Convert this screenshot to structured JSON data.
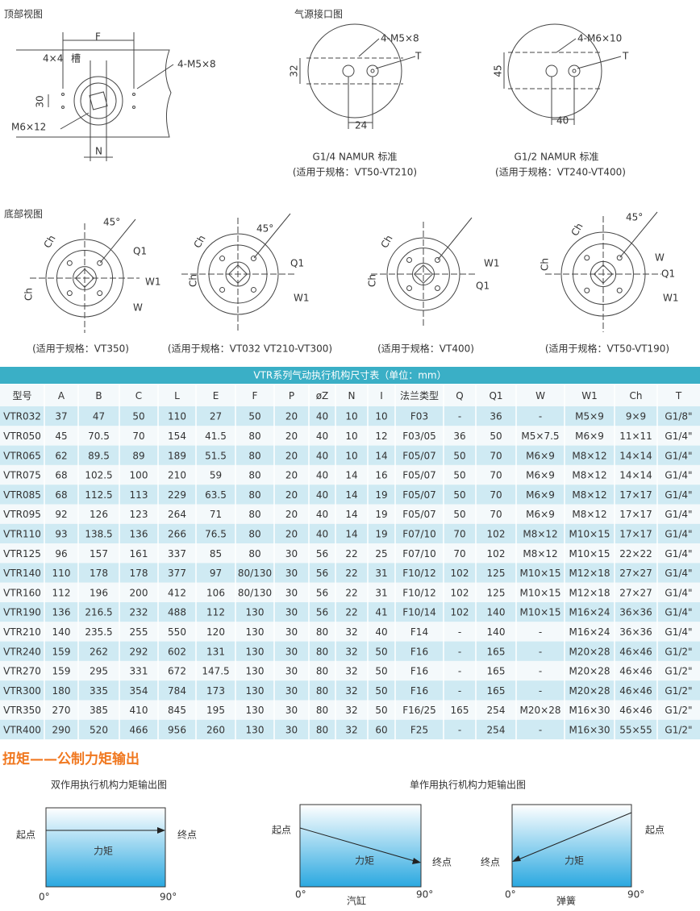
{
  "top_view": {
    "title": "顶部视图",
    "labels": [
      "F",
      "4×4",
      "槽",
      "4-M5×8",
      "30",
      "M6×12",
      "N"
    ]
  },
  "air_ports": {
    "title": "气源接口图",
    "labels": [
      "4-M5×8",
      "T",
      "32",
      "24",
      "4-M6×10",
      "T",
      "45",
      "40"
    ],
    "captions": [
      "G1/4 NAMUR 标准",
      "(适用于规格：VT50-VT210)",
      "G1/2 NAMUR  标准",
      "(适用于规格：VT240-VT400)"
    ]
  },
  "bottom_view": {
    "title": "底部视图",
    "labels": [
      "45°",
      "Ch",
      "Q1",
      "W1",
      "W",
      "Ch",
      "45°",
      "Ch",
      "Q1",
      "W1",
      "Ch",
      "Ch",
      "W1",
      "Q1",
      "Ch",
      "45°",
      "Ch",
      "W",
      "Q1",
      "W1",
      "Ch"
    ],
    "captions": [
      "(适用于规格：VT350)",
      "(适用于规格：VT032 VT210-VT300)",
      "(适用于规格：VT400)",
      "(适用于规格：VT50-VT190)"
    ]
  },
  "table": {
    "title": "VTR系列气动执行机构尺寸表（单位：mm）",
    "header": [
      "型号",
      "A",
      "B",
      "C",
      "L",
      "E",
      "F",
      "P",
      "øZ",
      "N",
      "I",
      "法兰类型",
      "Q",
      "Q1",
      "W",
      "W1",
      "Ch",
      "T"
    ],
    "rows": [
      [
        "VTR032",
        "37",
        "47",
        "50",
        "110",
        "27",
        "50",
        "20",
        "40",
        "10",
        "10",
        "F03",
        "-",
        "36",
        "-",
        "M5×9",
        "9×9",
        "G1/8\""
      ],
      [
        "VTR050",
        "45",
        "70.5",
        "70",
        "154",
        "41.5",
        "80",
        "20",
        "40",
        "10",
        "12",
        "F03/05",
        "36",
        "50",
        "M5×7.5",
        "M6×9",
        "11×11",
        "G1/4\""
      ],
      [
        "VTR065",
        "62",
        "89.5",
        "89",
        "189",
        "51.5",
        "80",
        "20",
        "40",
        "10",
        "14",
        "F05/07",
        "50",
        "70",
        "M6×9",
        "M8×12",
        "14×14",
        "G1/4\""
      ],
      [
        "VTR075",
        "68",
        "102.5",
        "100",
        "210",
        "59",
        "80",
        "20",
        "40",
        "14",
        "16",
        "F05/07",
        "50",
        "70",
        "M6×9",
        "M8×12",
        "14×14",
        "G1/4\""
      ],
      [
        "VTR085",
        "68",
        "112.5",
        "113",
        "229",
        "63.5",
        "80",
        "20",
        "40",
        "14",
        "19",
        "F05/07",
        "50",
        "70",
        "M6×9",
        "M8×12",
        "17×17",
        "G1/4\""
      ],
      [
        "VTR095",
        "92",
        "126",
        "123",
        "264",
        "71",
        "80",
        "20",
        "40",
        "14",
        "19",
        "F05/07",
        "50",
        "70",
        "M6×9",
        "M8×12",
        "17×17",
        "G1/4\""
      ],
      [
        "VTR110",
        "93",
        "138.5",
        "136",
        "266",
        "76.5",
        "80",
        "20",
        "40",
        "14",
        "19",
        "F07/10",
        "70",
        "102",
        "M8×12",
        "M10×15",
        "17×17",
        "G1/4\""
      ],
      [
        "VTR125",
        "96",
        "157",
        "161",
        "337",
        "85",
        "80",
        "30",
        "56",
        "22",
        "25",
        "F07/10",
        "70",
        "102",
        "M8×12",
        "M10×15",
        "22×22",
        "G1/4\""
      ],
      [
        "VTR140",
        "110",
        "178",
        "178",
        "377",
        "97",
        "80/130",
        "30",
        "56",
        "22",
        "31",
        "F10/12",
        "102",
        "125",
        "M10×15",
        "M12×18",
        "27×27",
        "G1/4\""
      ],
      [
        "VTR160",
        "112",
        "196",
        "200",
        "412",
        "106",
        "80/130",
        "30",
        "56",
        "22",
        "31",
        "F10/12",
        "102",
        "125",
        "M10×15",
        "M12×18",
        "27×27",
        "G1/4\""
      ],
      [
        "VTR190",
        "136",
        "216.5",
        "232",
        "488",
        "112",
        "130",
        "30",
        "56",
        "22",
        "41",
        "F10/14",
        "102",
        "140",
        "M10×15",
        "M16×24",
        "36×36",
        "G1/4\""
      ],
      [
        "VTR210",
        "140",
        "235.5",
        "255",
        "550",
        "120",
        "130",
        "30",
        "80",
        "32",
        "40",
        "F14",
        "-",
        "140",
        "-",
        "M16×24",
        "36×36",
        "G1/4\""
      ],
      [
        "VTR240",
        "159",
        "262",
        "292",
        "602",
        "131",
        "130",
        "30",
        "80",
        "32",
        "50",
        "F16",
        "-",
        "165",
        "-",
        "M20×28",
        "46×46",
        "G1/2\""
      ],
      [
        "VTR270",
        "159",
        "295",
        "331",
        "672",
        "147.5",
        "130",
        "30",
        "80",
        "32",
        "50",
        "F16",
        "-",
        "165",
        "-",
        "M20×28",
        "46×46",
        "G1/2\""
      ],
      [
        "VTR300",
        "180",
        "335",
        "354",
        "784",
        "173",
        "130",
        "30",
        "80",
        "32",
        "50",
        "F16",
        "-",
        "165",
        "-",
        "M20×28",
        "46×46",
        "G1/2\""
      ],
      [
        "VTR350",
        "270",
        "385",
        "410",
        "845",
        "195",
        "130",
        "30",
        "80",
        "32",
        "50",
        "F16/25",
        "165",
        "254",
        "M20×28",
        "M16×30",
        "46×46",
        "G1/2\""
      ],
      [
        "VTR400",
        "290",
        "520",
        "466",
        "956",
        "260",
        "130",
        "30",
        "80",
        "32",
        "60",
        "F25",
        "-",
        "254",
        "-",
        "M16×30",
        "55×55",
        "G1/2\""
      ]
    ]
  },
  "torque": {
    "title": "扭矩——公制力矩输出",
    "double": {
      "title": "双作用执行机构力矩输出图",
      "start": "起点",
      "end": "终点",
      "torque": "力矩",
      "x0": "0°",
      "x90": "90°"
    },
    "single": {
      "title": "单作用执行机构力矩输出图",
      "cylinder": {
        "start": "起点",
        "end": "终点",
        "torque": "力矩",
        "x0": "0°",
        "x90": "90°",
        "label": "汽缸"
      },
      "spring": {
        "start": "起点",
        "end": "终点",
        "torque": "力矩",
        "x0": "0°",
        "x90": "90°",
        "label": "弹簧"
      }
    }
  }
}
